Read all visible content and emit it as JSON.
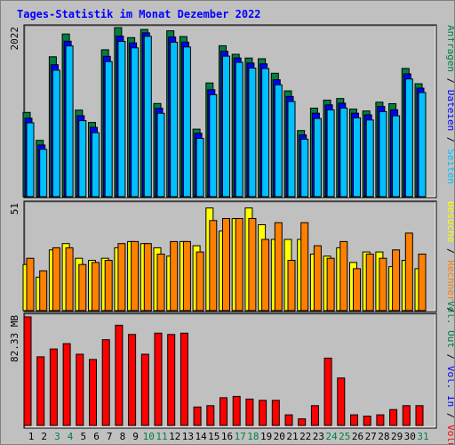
{
  "title": "Tages-Statistik im Monat Dezember 2022",
  "colors": {
    "anfragen": "#008040",
    "dateien": "#0000ff",
    "seiten": "#00c0ff",
    "besuche": "#ffff00",
    "rechner": "#ff8000",
    "volumen": "#ff0000",
    "weekend_label": "#008040",
    "weekday_label": "#000000",
    "panel_bg": "#c0c0c0"
  },
  "legend_top": {
    "anfragen": "Anfragen",
    "dateien": "Dateien",
    "seiten": "Seiten",
    "sep": "/"
  },
  "legend_mid": {
    "besuche": "Besuche",
    "rechner": "Rechner",
    "sep": "/"
  },
  "legend_bot": {
    "volumen": "Volumen",
    "vol_in": "Vol. In",
    "vol_out": "Vol. Out",
    "sep": "/"
  },
  "chart_data": {
    "type": "bar",
    "days": [
      "1",
      "2",
      "3",
      "4",
      "5",
      "6",
      "7",
      "8",
      "9",
      "10",
      "11",
      "12",
      "13",
      "14",
      "15",
      "16",
      "17",
      "18",
      "19",
      "20",
      "21",
      "22",
      "23",
      "24",
      "25",
      "26",
      "27",
      "28",
      "29",
      "30",
      "31"
    ],
    "weekend_days": [
      3,
      4,
      10,
      11,
      17,
      18,
      24,
      25,
      31
    ],
    "top": {
      "ymax_label": "2022",
      "ymax": 2022,
      "anfragen": [
        1008,
        674,
        1673,
        1945,
        1035,
        888,
        1757,
        2022,
        1902,
        2000,
        1114,
        1984,
        1915,
        808,
        1360,
        1805,
        1703,
        1658,
        1649,
        1476,
        1265,
        791,
        1059,
        1155,
        1174,
        1047,
        1025,
        1130,
        1112,
        1533,
        1350
      ],
      "dateien": [
        960,
        640,
        1600,
        1880,
        990,
        850,
        1700,
        1940,
        1860,
        1980,
        1080,
        1930,
        1870,
        780,
        1300,
        1760,
        1680,
        1620,
        1610,
        1420,
        1220,
        760,
        1020,
        1120,
        1140,
        1020,
        1000,
        1100,
        1060,
        1490,
        1320
      ],
      "seiten": [
        926,
        609,
        1555,
        1845,
        951,
        808,
        1658,
        1900,
        1822,
        1960,
        1040,
        1890,
        1833,
        740,
        1262,
        1723,
        1650,
        1580,
        1575,
        1380,
        1180,
        730,
        978,
        1080,
        1102,
        985,
        960,
        1060,
        1010,
        1451,
        1288
      ]
    },
    "mid": {
      "ymax_label": "51",
      "ymax": 51,
      "besuche": [
        22,
        16,
        29,
        32,
        25,
        24,
        25,
        30,
        33,
        32,
        30,
        26,
        33,
        31,
        49,
        38,
        44,
        49,
        41,
        34,
        34,
        34,
        27,
        26,
        30,
        23,
        28,
        28,
        21,
        24,
        20
      ],
      "rechner": [
        25,
        19,
        30,
        30,
        22,
        23,
        24,
        32,
        33,
        32,
        27,
        33,
        33,
        28,
        43,
        44,
        44,
        44,
        34,
        42,
        24,
        42,
        31,
        25,
        33,
        20,
        27,
        25,
        29,
        37,
        27
      ]
    },
    "bot": {
      "ymax_label": "82.33 MB",
      "ymax": 82.33,
      "volumen": [
        82.33,
        52,
        58,
        62,
        54,
        50,
        65,
        76,
        69,
        54,
        70,
        69,
        70,
        14,
        15,
        21,
        22,
        20,
        19,
        19,
        8,
        5,
        15,
        51,
        36,
        8,
        7,
        8,
        12,
        15,
        15
      ]
    }
  }
}
